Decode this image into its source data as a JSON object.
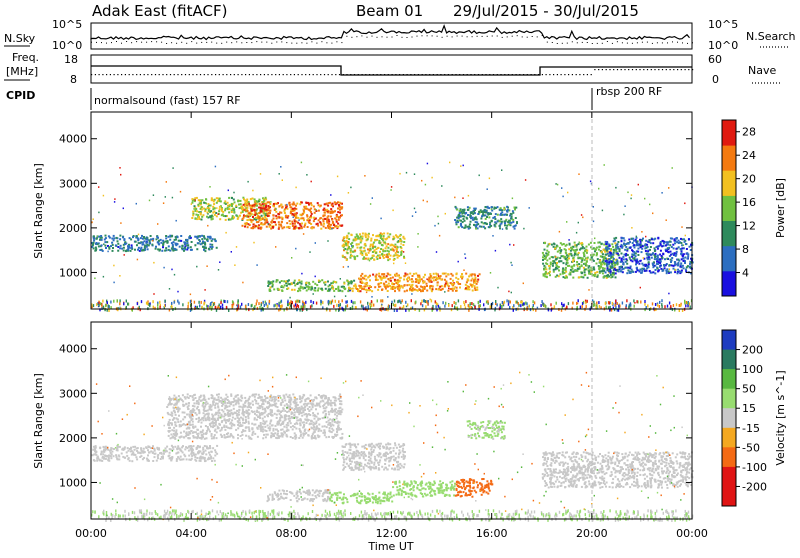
{
  "header": {
    "radar_name": "Adak East (fitACF)",
    "beam": "Beam 01",
    "date_range": "29/Jul/2015 - 30/Jul/2015"
  },
  "noise_panel": {
    "left_label": "N.Sky",
    "right_label": "N.Search",
    "left_ticks": [
      "10^5",
      "10^0"
    ],
    "right_ticks": [
      "10^5",
      "10^0"
    ]
  },
  "freq_panel": {
    "left_label_line1": "Freq.",
    "left_label_line2": "[MHz]",
    "right_label": "Nave",
    "left_ticks": [
      "18",
      "8"
    ],
    "right_ticks": [
      "60",
      "0"
    ]
  },
  "cpid_panel": {
    "label": "CPID",
    "segments": [
      {
        "start_hour": 0,
        "text": "normalsound (fast) 157 RF"
      },
      {
        "start_hour": 20,
        "text": "rbsp 200 RF"
      }
    ]
  },
  "chart_data": [
    {
      "type": "heatmap",
      "title": "",
      "xlabel": "Time UT",
      "ylabel": "Slant Range [km]",
      "x_range_hours": [
        0,
        24
      ],
      "xtick_labels": [
        "00:00",
        "04:00",
        "08:00",
        "12:00",
        "16:00",
        "20:00",
        "00:00"
      ],
      "ylim": [
        180,
        4600
      ],
      "yticks": [
        1000,
        2000,
        3000,
        4000
      ],
      "colorbar": {
        "label": "Power [dB]",
        "range": [
          0,
          30
        ],
        "ticks": [
          4,
          8,
          12,
          16,
          20,
          24,
          28
        ],
        "colors": [
          "#1a10e0",
          "#2c6ec0",
          "#2e8a5c",
          "#70c040",
          "#f2c020",
          "#f47a10",
          "#e01a10"
        ]
      },
      "echo_regions": [
        {
          "t0": 0.0,
          "t1": 5.0,
          "r0": 1500,
          "r1": 1850,
          "value": 8
        },
        {
          "t0": 4.0,
          "t1": 7.0,
          "r0": 2200,
          "r1": 2700,
          "value": 16
        },
        {
          "t0": 6.0,
          "t1": 10.0,
          "r0": 2000,
          "r1": 2600,
          "value": 24
        },
        {
          "t0": 10.0,
          "t1": 12.5,
          "r0": 1300,
          "r1": 1900,
          "value": 18
        },
        {
          "t0": 10.5,
          "t1": 15.5,
          "r0": 600,
          "r1": 1000,
          "value": 22
        },
        {
          "t0": 7.0,
          "t1": 10.5,
          "r0": 600,
          "r1": 850,
          "value": 14
        },
        {
          "t0": 14.5,
          "t1": 17.0,
          "r0": 2000,
          "r1": 2500,
          "value": 10
        },
        {
          "t0": 18.0,
          "t1": 21.0,
          "r0": 900,
          "r1": 1700,
          "value": 14
        },
        {
          "t0": 20.5,
          "t1": 24.0,
          "r0": 1000,
          "r1": 1800,
          "value": 6
        }
      ]
    },
    {
      "type": "heatmap",
      "title": "",
      "xlabel": "Time UT",
      "ylabel": "Slant Range [km]",
      "x_range_hours": [
        0,
        24
      ],
      "xtick_labels": [
        "00:00",
        "04:00",
        "08:00",
        "12:00",
        "16:00",
        "20:00",
        "00:00"
      ],
      "ylim": [
        180,
        4600
      ],
      "yticks": [
        1000,
        2000,
        3000,
        4000
      ],
      "colorbar": {
        "label": "Velocity [m s^-1]",
        "tick_labels": [
          "200",
          "100",
          "50",
          "15",
          "-15",
          "-50",
          "-100",
          "-200"
        ],
        "colors": [
          "#1e3cc0",
          "#2a7a60",
          "#58b840",
          "#98dc70",
          "#c8c8c8",
          "#f4a820",
          "#f46a14",
          "#e01414"
        ]
      },
      "echo_regions": [
        {
          "t0": 0.0,
          "t1": 5.0,
          "r0": 1500,
          "r1": 1850,
          "value": 0
        },
        {
          "t0": 3.0,
          "t1": 10.0,
          "r0": 2000,
          "r1": 3000,
          "value": 0
        },
        {
          "t0": 10.0,
          "t1": 12.5,
          "r0": 1300,
          "r1": 1900,
          "value": 0
        },
        {
          "t0": 7.0,
          "t1": 9.5,
          "r0": 600,
          "r1": 850,
          "value": 0
        },
        {
          "t0": 9.5,
          "t1": 12.0,
          "r0": 550,
          "r1": 800,
          "value": 40
        },
        {
          "t0": 12.0,
          "t1": 14.5,
          "r0": 700,
          "r1": 1050,
          "value": 25
        },
        {
          "t0": 14.5,
          "t1": 16.0,
          "r0": 700,
          "r1": 1100,
          "value": -60
        },
        {
          "t0": 18.0,
          "t1": 24.0,
          "r0": 900,
          "r1": 1700,
          "value": 0
        },
        {
          "t0": 15.0,
          "t1": 16.5,
          "r0": 2000,
          "r1": 2400,
          "value": 20
        }
      ]
    }
  ]
}
